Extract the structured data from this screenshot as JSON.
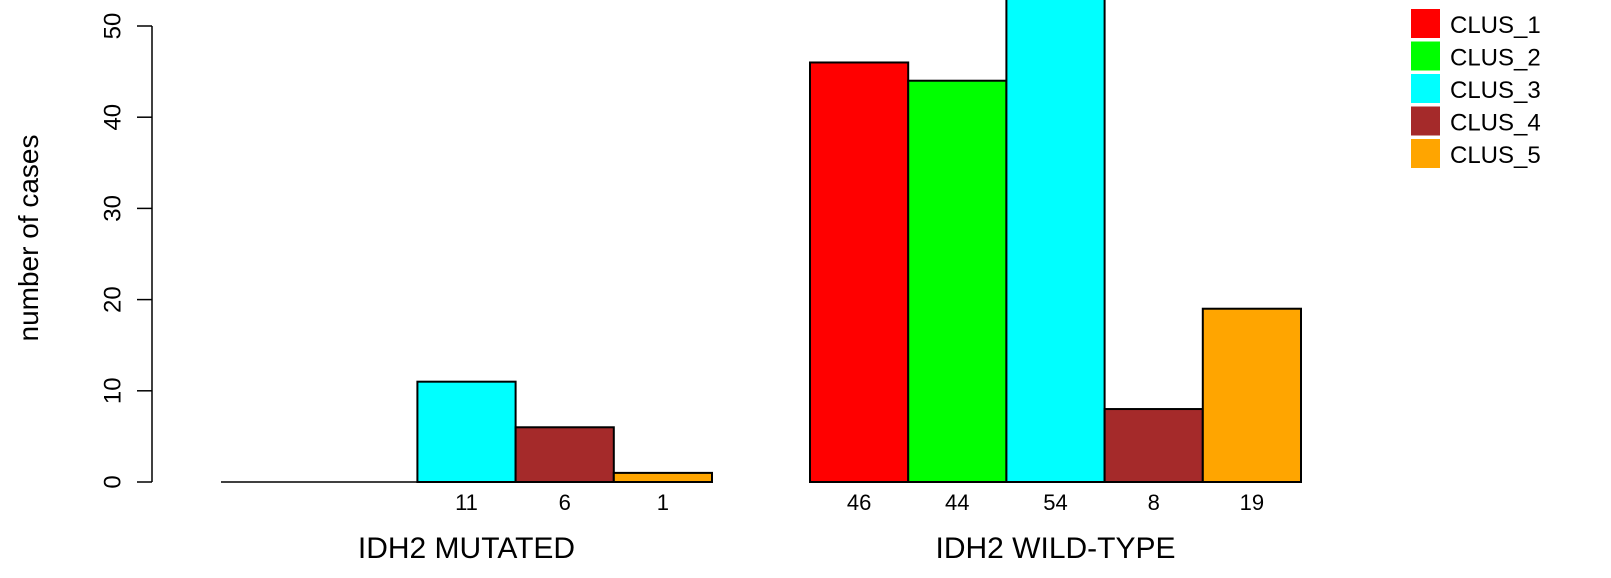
{
  "chart_data": {
    "type": "bar",
    "title": "",
    "xlabel": "",
    "ylabel": "number of cases",
    "ylim": [
      0,
      50
    ],
    "yticks": [
      0,
      10,
      20,
      30,
      40,
      50
    ],
    "grid": false,
    "legend_position": "top-right",
    "groups": [
      "IDH2 MUTATED",
      "IDH2 WILD-TYPE"
    ],
    "series": [
      {
        "name": "CLUS_1",
        "color": "#FF0000",
        "values": [
          0,
          46
        ]
      },
      {
        "name": "CLUS_2",
        "color": "#00FF00",
        "values": [
          0,
          44
        ]
      },
      {
        "name": "CLUS_3",
        "color": "#00FFFF",
        "values": [
          11,
          54
        ]
      },
      {
        "name": "CLUS_4",
        "color": "#A52A2A",
        "values": [
          6,
          8
        ]
      },
      {
        "name": "CLUS_5",
        "color": "#FFA500",
        "values": [
          1,
          19
        ]
      }
    ],
    "bar_labels": [
      [
        "",
        "",
        "11",
        "6",
        "1"
      ],
      [
        "46",
        "44",
        "54",
        "8",
        "19"
      ]
    ]
  }
}
